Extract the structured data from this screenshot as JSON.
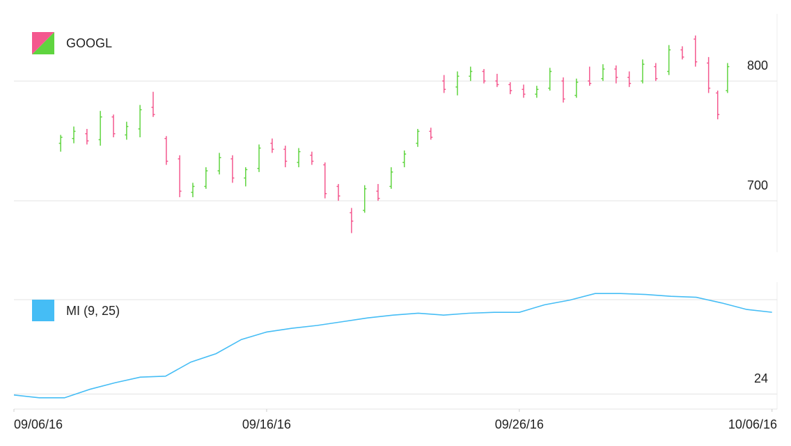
{
  "chart_data": [
    {
      "type": "ohlc",
      "name": "GOOGL",
      "up_color": "#5fd43f",
      "down_color": "#f4578e",
      "x": [
        1.85,
        2.37,
        2.89,
        3.42,
        3.94,
        4.46,
        4.99,
        5.51,
        6.03,
        6.56,
        7.08,
        7.6,
        8.13,
        8.65,
        9.17,
        9.7,
        10.22,
        10.74,
        11.27,
        11.79,
        12.31,
        12.84,
        13.36,
        13.88,
        14.41,
        14.93,
        15.45,
        15.98,
        16.5,
        17.02,
        17.55,
        18.07,
        18.6,
        19.12,
        19.64,
        20.17,
        20.69,
        21.21,
        21.74,
        22.26,
        22.78,
        23.31,
        23.83,
        24.35,
        24.88,
        25.4,
        25.92,
        26.45,
        26.97,
        27.49,
        27.85,
        28.24
      ],
      "open": [
        748,
        752,
        756,
        751,
        770,
        755,
        760,
        778,
        752,
        735,
        707,
        712,
        725,
        735,
        719,
        727,
        748,
        743,
        732,
        738,
        730,
        712,
        690,
        692,
        708,
        712,
        732,
        748,
        758,
        800,
        795,
        804,
        808,
        800,
        797,
        793,
        789,
        794,
        800,
        788,
        800,
        802,
        810,
        803,
        800,
        812,
        808,
        826,
        835,
        815,
        790,
        792
      ],
      "high": [
        755,
        762,
        760,
        775,
        772,
        766,
        780,
        791,
        754,
        738,
        715,
        728,
        740,
        738,
        728,
        747,
        752,
        746,
        744,
        741,
        732,
        714,
        694,
        713,
        714,
        728,
        742,
        760,
        761,
        805,
        808,
        812,
        810,
        806,
        799,
        797,
        796,
        811,
        803,
        802,
        812,
        814,
        813,
        808,
        818,
        815,
        830,
        829,
        838,
        820,
        792,
        815
      ],
      "low": [
        741,
        748,
        747,
        746,
        753,
        751,
        753,
        770,
        730,
        703,
        703,
        710,
        722,
        715,
        712,
        724,
        740,
        728,
        728,
        730,
        702,
        700,
        673,
        690,
        700,
        710,
        728,
        745,
        751,
        790,
        788,
        800,
        798,
        795,
        789,
        786,
        786,
        792,
        782,
        786,
        796,
        800,
        798,
        795,
        798,
        800,
        805,
        818,
        812,
        790,
        768,
        790
      ],
      "close": [
        753,
        758,
        750,
        770,
        756,
        762,
        776,
        772,
        733,
        708,
        712,
        725,
        736,
        719,
        726,
        744,
        743,
        733,
        741,
        733,
        706,
        704,
        683,
        710,
        702,
        724,
        739,
        758,
        753,
        793,
        804,
        808,
        800,
        797,
        792,
        789,
        793,
        808,
        785,
        799,
        798,
        810,
        803,
        798,
        814,
        802,
        826,
        820,
        816,
        794,
        772,
        812
      ],
      "xlim": [
        0,
        30.2
      ],
      "ylim": [
        657,
        856
      ],
      "yticks": [
        700,
        800
      ],
      "grid": true
    },
    {
      "type": "line",
      "series": [
        {
          "name": "MI (9, 25)",
          "color": "#45bdf5",
          "values": [
            23.99,
            23.96,
            23.96,
            24.05,
            24.12,
            24.18,
            24.19,
            24.34,
            24.43,
            24.58,
            24.66,
            24.7,
            24.73,
            24.77,
            24.81,
            24.84,
            24.86,
            24.84,
            24.86,
            24.87,
            24.87,
            24.95,
            25.0,
            25.07,
            25.07,
            25.06,
            25.04,
            25.03,
            24.97,
            24.9,
            24.87
          ]
        }
      ],
      "x": [
        0,
        1,
        2,
        3,
        4,
        5,
        6,
        7,
        8,
        9,
        10,
        11,
        12,
        13,
        14,
        15,
        16,
        17,
        18,
        19,
        20,
        21,
        22,
        23,
        24,
        25,
        26,
        27,
        28,
        29,
        30
      ],
      "xlim": [
        0,
        30.2
      ],
      "ylim": [
        23.84,
        25.19
      ],
      "yticks": [
        24
      ],
      "grid": true,
      "xticks": [
        {
          "value": 0,
          "label": "09/06/16"
        },
        {
          "value": 10,
          "label": "09/16/16"
        },
        {
          "value": 20,
          "label": "09/26/16"
        },
        {
          "value": 30,
          "label": "10/06/16"
        }
      ]
    }
  ]
}
